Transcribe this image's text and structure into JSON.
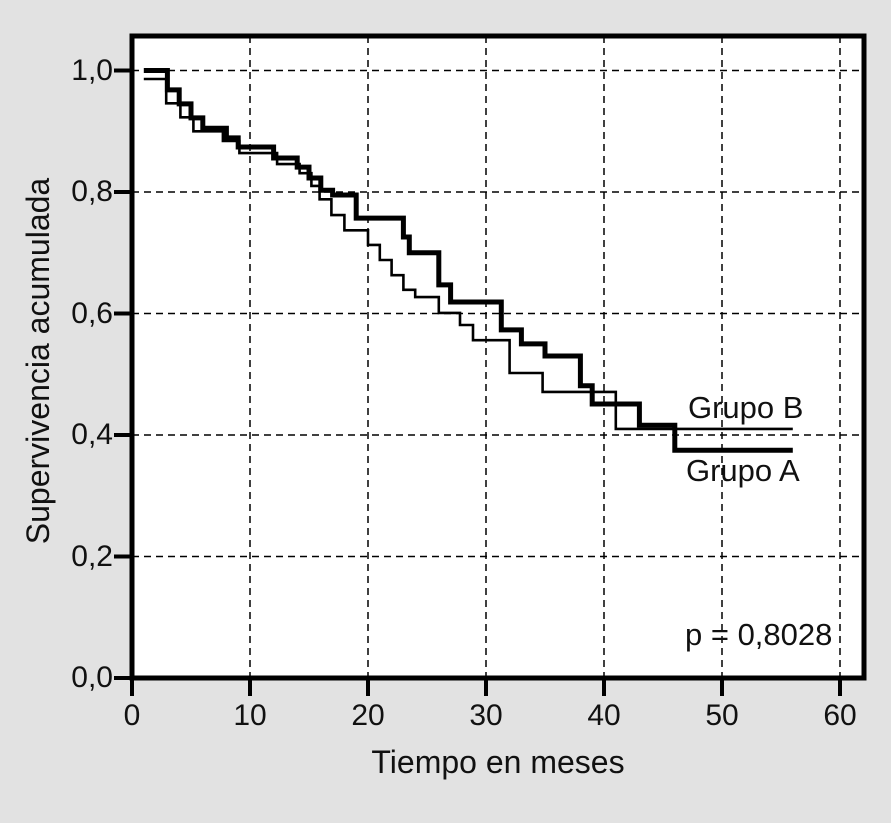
{
  "chart_data": {
    "type": "line",
    "chart_style": "kaplan-meier-survival-steps",
    "title": "",
    "xlabel": "Tiempo en meses",
    "ylabel": "Supervivencia acumulada",
    "xlim": [
      0,
      62
    ],
    "ylim": [
      0,
      1.056
    ],
    "xticks": [
      0,
      10,
      20,
      30,
      40,
      50,
      60
    ],
    "xtick_labels": [
      "0",
      "10",
      "20",
      "30",
      "40",
      "50",
      "60"
    ],
    "yticks": [
      0,
      0.2,
      0.4,
      0.6,
      0.8,
      1.0
    ],
    "ytick_labels": [
      "0,0",
      "0,2",
      "0,4",
      "0,6",
      "0,8",
      "1,0"
    ],
    "grid": {
      "show": true,
      "style": "dashed",
      "on_x_ticks": true,
      "on_y_ticks": true
    },
    "legend_position": "inline-right-of-curves",
    "annotation": "p = 0,8028",
    "series": [
      {
        "name": "Grupo A",
        "line": "thick",
        "start": [
          1,
          1.0
        ],
        "steps": [
          [
            3,
            0.968
          ],
          [
            4,
            0.945
          ],
          [
            5,
            0.922
          ],
          [
            6,
            0.905
          ],
          [
            8,
            0.889
          ],
          [
            9,
            0.874
          ],
          [
            12,
            0.856
          ],
          [
            14,
            0.841
          ],
          [
            15,
            0.823
          ],
          [
            16,
            0.803
          ],
          [
            17,
            0.795
          ],
          [
            19,
            0.757
          ],
          [
            23,
            0.726
          ],
          [
            23.5,
            0.7
          ],
          [
            26,
            0.647
          ],
          [
            27,
            0.619
          ],
          [
            31.3,
            0.573
          ],
          [
            33,
            0.55
          ],
          [
            35,
            0.53
          ],
          [
            38,
            0.481
          ],
          [
            39,
            0.451
          ],
          [
            43,
            0.416
          ],
          [
            46,
            0.375
          ]
        ],
        "end_month": 56,
        "final_survival": 0.375
      },
      {
        "name": "Grupo B",
        "line": "thin",
        "start": [
          1,
          0.986
        ],
        "steps": [
          [
            2.9,
            0.946
          ],
          [
            4.1,
            0.923
          ],
          [
            5.2,
            0.9
          ],
          [
            7.7,
            0.884
          ],
          [
            9.1,
            0.864
          ],
          [
            12.3,
            0.846
          ],
          [
            14.2,
            0.831
          ],
          [
            15.2,
            0.81
          ],
          [
            15.9,
            0.788
          ],
          [
            16.9,
            0.762
          ],
          [
            18,
            0.737
          ],
          [
            20,
            0.713
          ],
          [
            21,
            0.688
          ],
          [
            22,
            0.663
          ],
          [
            23,
            0.639
          ],
          [
            24,
            0.627
          ],
          [
            26,
            0.601
          ],
          [
            27.8,
            0.581
          ],
          [
            28.9,
            0.556
          ],
          [
            32,
            0.502
          ],
          [
            34.8,
            0.471
          ],
          [
            41,
            0.41
          ]
        ],
        "end_month": 56,
        "final_survival": 0.41
      }
    ]
  },
  "colors": {
    "background": "#e2e2e2",
    "plot_background": "#ffffff",
    "line": "#000000",
    "grid": "#000000",
    "text": "#111111"
  }
}
